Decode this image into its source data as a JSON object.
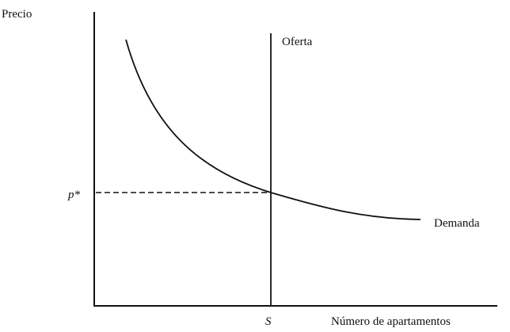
{
  "diagram": {
    "y_axis_label": "Precio",
    "x_axis_label": "Número de apartamentos",
    "supply_label": "Oferta",
    "demand_label": "Demanda",
    "price_label": "p*",
    "quantity_label": "S"
  },
  "colors": {
    "ink": "#111111",
    "background": "#ffffff"
  }
}
